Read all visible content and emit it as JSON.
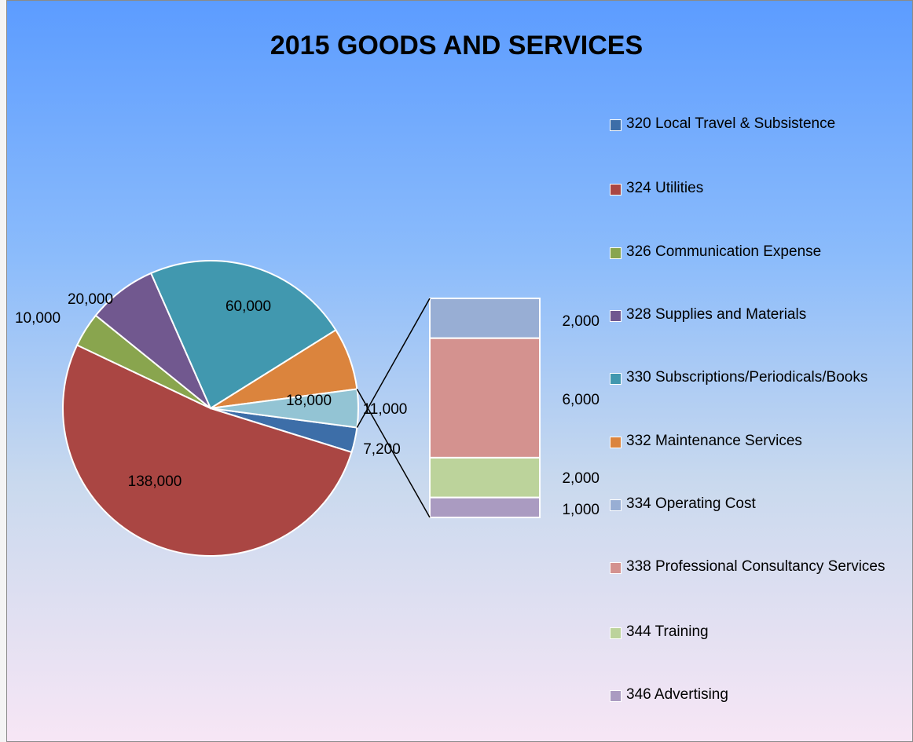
{
  "chart_data": {
    "type": "pie-of-bar",
    "title": "2015 GOODS AND SERVICES",
    "categories": [
      "320 Local Travel & Subsistence",
      "324 Utilities",
      "326 Communication Expense",
      "328 Supplies and Materials",
      "330 Subscriptions/Periodicals/Books",
      "332 Maintenance Services",
      null
    ],
    "values": [
      7200,
      138000,
      10000,
      20000,
      60000,
      18000,
      11000
    ],
    "value_labels": [
      "7,200",
      "138,000",
      "10,000",
      "20,000",
      "60,000",
      "18,000",
      "11,000"
    ],
    "colors": [
      "#3d6ea8",
      "#aa4643",
      "#89a54e",
      "#71588f",
      "#4198af",
      "#db843d",
      "#93c4d4"
    ],
    "bar_categories": [
      "334 Operating Cost",
      "338 Professional Consultancy Services",
      "344 Training",
      "346 Advertising"
    ],
    "bar_values": [
      2000,
      6000,
      2000,
      1000
    ],
    "bar_value_labels": [
      "2,000",
      "6,000",
      "2,000",
      "1,000"
    ],
    "bar_colors": [
      "#98aed4",
      "#d4928f",
      "#bcd39b",
      "#aa9bc1"
    ]
  }
}
